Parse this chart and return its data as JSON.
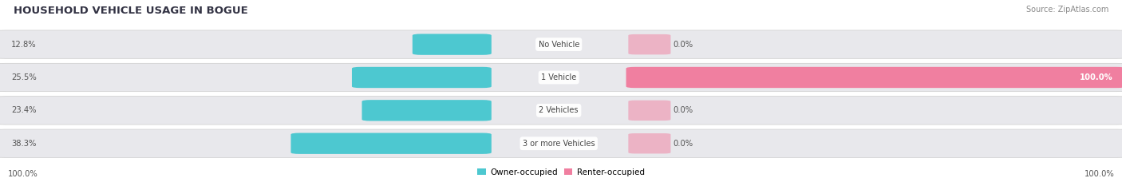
{
  "title": "HOUSEHOLD VEHICLE USAGE IN BOGUE",
  "source": "Source: ZipAtlas.com",
  "categories": [
    "No Vehicle",
    "1 Vehicle",
    "2 Vehicles",
    "3 or more Vehicles"
  ],
  "owner_values": [
    12.8,
    25.5,
    23.4,
    38.3
  ],
  "renter_values": [
    0.0,
    100.0,
    0.0,
    0.0
  ],
  "owner_color": "#4dc8d0",
  "renter_color": "#f07fa0",
  "bar_bg_color": "#e8e8ec",
  "fig_bg_color": "#ffffff",
  "legend_owner": "Owner-occupied",
  "legend_renter": "Renter-occupied",
  "left_label": "100.0%",
  "right_label": "100.0%",
  "title_color": "#333344",
  "source_color": "#888888",
  "value_color": "#555555",
  "cat_label_color": "#444444"
}
